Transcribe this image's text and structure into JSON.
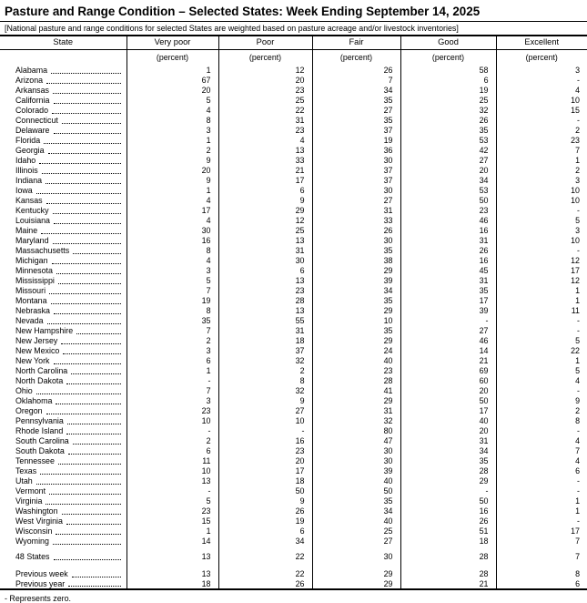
{
  "page": {
    "title": "Pasture and Range Condition – Selected States: Week Ending September 14, 2025",
    "subtitle": "[National pasture and range conditions for selected States are weighted based on pasture acreage and/or livestock inventories]",
    "footnote": "- Represents zero.",
    "colors": {
      "text": "#000000",
      "background": "#ffffff",
      "rule": "#000000"
    }
  },
  "table": {
    "columns": [
      "State",
      "Very poor",
      "Poor",
      "Fair",
      "Good",
      "Excellent"
    ],
    "unit_label": "(percent)",
    "zero_symbol": "-",
    "rows": [
      {
        "state": "Alabama",
        "values": [
          "1",
          "12",
          "26",
          "58",
          "3"
        ]
      },
      {
        "state": "Arizona",
        "values": [
          "67",
          "20",
          "7",
          "6",
          "-"
        ]
      },
      {
        "state": "Arkansas",
        "values": [
          "20",
          "23",
          "34",
          "19",
          "4"
        ]
      },
      {
        "state": "California",
        "values": [
          "5",
          "25",
          "35",
          "25",
          "10"
        ]
      },
      {
        "state": "Colorado",
        "values": [
          "4",
          "22",
          "27",
          "32",
          "15"
        ]
      },
      {
        "state": "Connecticut",
        "values": [
          "8",
          "31",
          "35",
          "26",
          "-"
        ]
      },
      {
        "state": "Delaware",
        "values": [
          "3",
          "23",
          "37",
          "35",
          "2"
        ]
      },
      {
        "state": "Florida",
        "values": [
          "1",
          "4",
          "19",
          "53",
          "23"
        ]
      },
      {
        "state": "Georgia",
        "values": [
          "2",
          "13",
          "36",
          "42",
          "7"
        ]
      },
      {
        "state": "Idaho",
        "values": [
          "9",
          "33",
          "30",
          "27",
          "1"
        ]
      },
      {
        "state": "Illinois",
        "values": [
          "20",
          "21",
          "37",
          "20",
          "2"
        ]
      },
      {
        "state": "Indiana",
        "values": [
          "9",
          "17",
          "37",
          "34",
          "3"
        ]
      },
      {
        "state": "Iowa",
        "values": [
          "1",
          "6",
          "30",
          "53",
          "10"
        ]
      },
      {
        "state": "Kansas",
        "values": [
          "4",
          "9",
          "27",
          "50",
          "10"
        ]
      },
      {
        "state": "Kentucky",
        "values": [
          "17",
          "29",
          "31",
          "23",
          "-"
        ]
      },
      {
        "state": "Louisiana",
        "values": [
          "4",
          "12",
          "33",
          "46",
          "5"
        ]
      },
      {
        "state": "Maine",
        "values": [
          "30",
          "25",
          "26",
          "16",
          "3"
        ]
      },
      {
        "state": "Maryland",
        "values": [
          "16",
          "13",
          "30",
          "31",
          "10"
        ]
      },
      {
        "state": "Massachusetts",
        "values": [
          "8",
          "31",
          "35",
          "26",
          "-"
        ]
      },
      {
        "state": "Michigan",
        "values": [
          "4",
          "30",
          "38",
          "16",
          "12"
        ]
      },
      {
        "state": "Minnesota",
        "values": [
          "3",
          "6",
          "29",
          "45",
          "17"
        ]
      },
      {
        "state": "Mississippi",
        "values": [
          "5",
          "13",
          "39",
          "31",
          "12"
        ]
      },
      {
        "state": "Missouri",
        "values": [
          "7",
          "23",
          "34",
          "35",
          "1"
        ]
      },
      {
        "state": "Montana",
        "values": [
          "19",
          "28",
          "35",
          "17",
          "1"
        ]
      },
      {
        "state": "Nebraska",
        "values": [
          "8",
          "13",
          "29",
          "39",
          "11"
        ]
      },
      {
        "state": "Nevada",
        "values": [
          "35",
          "55",
          "10",
          "-",
          "-"
        ]
      },
      {
        "state": "New Hampshire",
        "values": [
          "7",
          "31",
          "35",
          "27",
          "-"
        ]
      },
      {
        "state": "New Jersey",
        "values": [
          "2",
          "18",
          "29",
          "46",
          "5"
        ]
      },
      {
        "state": "New Mexico",
        "values": [
          "3",
          "37",
          "24",
          "14",
          "22"
        ]
      },
      {
        "state": "New York",
        "values": [
          "6",
          "32",
          "40",
          "21",
          "1"
        ]
      },
      {
        "state": "North Carolina",
        "values": [
          "1",
          "2",
          "23",
          "69",
          "5"
        ]
      },
      {
        "state": "North Dakota",
        "values": [
          "-",
          "8",
          "28",
          "60",
          "4"
        ]
      },
      {
        "state": "Ohio",
        "values": [
          "7",
          "32",
          "41",
          "20",
          "-"
        ]
      },
      {
        "state": "Oklahoma",
        "values": [
          "3",
          "9",
          "29",
          "50",
          "9"
        ]
      },
      {
        "state": "Oregon",
        "values": [
          "23",
          "27",
          "31",
          "17",
          "2"
        ]
      },
      {
        "state": "Pennsylvania",
        "values": [
          "10",
          "10",
          "32",
          "40",
          "8"
        ]
      },
      {
        "state": "Rhode Island",
        "values": [
          "-",
          "-",
          "80",
          "20",
          "-"
        ]
      },
      {
        "state": "South Carolina",
        "values": [
          "2",
          "16",
          "47",
          "31",
          "4"
        ]
      },
      {
        "state": "South Dakota",
        "values": [
          "6",
          "23",
          "30",
          "34",
          "7"
        ]
      },
      {
        "state": "Tennessee",
        "values": [
          "11",
          "20",
          "30",
          "35",
          "4"
        ]
      },
      {
        "state": "Texas",
        "values": [
          "10",
          "17",
          "39",
          "28",
          "6"
        ]
      },
      {
        "state": "Utah",
        "values": [
          "13",
          "18",
          "40",
          "29",
          "-"
        ]
      },
      {
        "state": "Vermont",
        "values": [
          "-",
          "50",
          "50",
          "-",
          "-"
        ]
      },
      {
        "state": "Virginia",
        "values": [
          "5",
          "9",
          "35",
          "50",
          "1"
        ]
      },
      {
        "state": "Washington",
        "values": [
          "23",
          "26",
          "34",
          "16",
          "1"
        ]
      },
      {
        "state": "West Virginia",
        "values": [
          "15",
          "19",
          "40",
          "26",
          "-"
        ]
      },
      {
        "state": "Wisconsin",
        "values": [
          "1",
          "6",
          "25",
          "51",
          "17"
        ]
      },
      {
        "state": "Wyoming",
        "values": [
          "14",
          "34",
          "27",
          "18",
          "7"
        ]
      }
    ],
    "summary_rows": [
      {
        "state": "48 States",
        "values": [
          "13",
          "22",
          "30",
          "28",
          "7"
        ]
      }
    ],
    "comparison_rows": [
      {
        "state": "Previous week",
        "values": [
          "13",
          "22",
          "29",
          "28",
          "8"
        ]
      },
      {
        "state": "Previous year",
        "values": [
          "18",
          "26",
          "29",
          "21",
          "6"
        ]
      }
    ]
  }
}
